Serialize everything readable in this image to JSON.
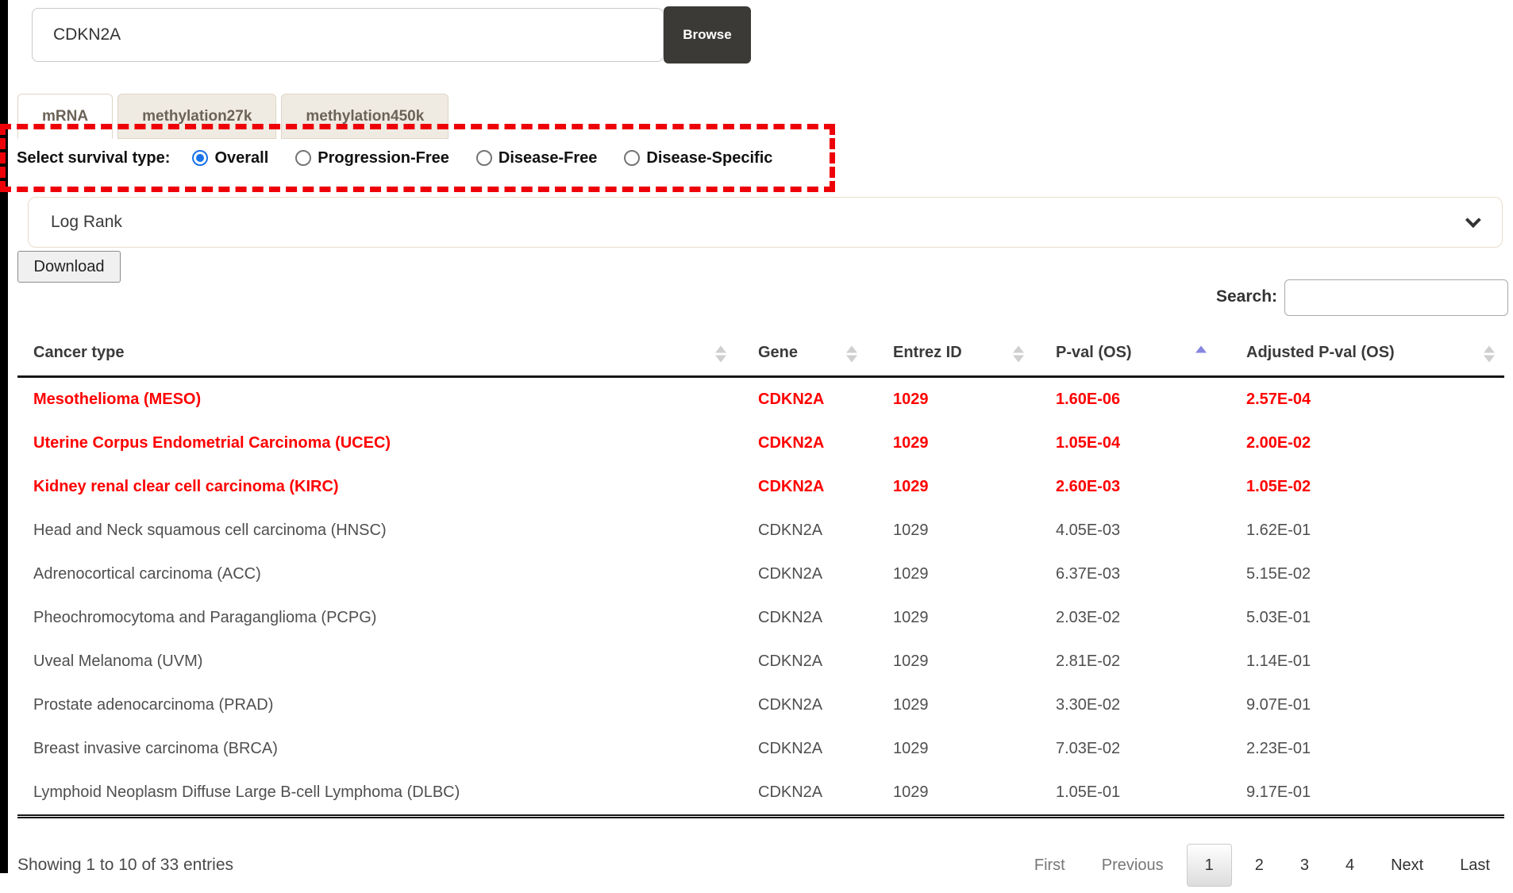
{
  "gene_search": {
    "value": "CDKN2A",
    "browse_label": "Browse"
  },
  "tabs": [
    {
      "label": "mRNA",
      "active": true
    },
    {
      "label": "methylation27k",
      "active": false
    },
    {
      "label": "methylation450k",
      "active": false
    }
  ],
  "survival": {
    "label": "Select survival type:",
    "options": [
      {
        "label": "Overall",
        "selected": true
      },
      {
        "label": "Progression-Free",
        "selected": false
      },
      {
        "label": "Disease-Free",
        "selected": false
      },
      {
        "label": "Disease-Specific",
        "selected": false
      }
    ]
  },
  "test_select": {
    "value": "Log Rank"
  },
  "download_label": "Download",
  "table_search": {
    "label": "Search:",
    "value": ""
  },
  "table": {
    "columns": [
      "Cancer type",
      "Gene",
      "Entrez ID",
      "P-val (OS)",
      "Adjusted P-val (OS)"
    ],
    "sorted_column_index": 3,
    "sort_direction": "asc",
    "rows": [
      {
        "cancer_type": "Mesothelioma (MESO)",
        "gene": "CDKN2A",
        "entrez_id": "1029",
        "p_val": "1.60E-06",
        "adj_p_val": "2.57E-04",
        "significant": true
      },
      {
        "cancer_type": "Uterine Corpus Endometrial Carcinoma (UCEC)",
        "gene": "CDKN2A",
        "entrez_id": "1029",
        "p_val": "1.05E-04",
        "adj_p_val": "2.00E-02",
        "significant": true
      },
      {
        "cancer_type": "Kidney renal clear cell carcinoma (KIRC)",
        "gene": "CDKN2A",
        "entrez_id": "1029",
        "p_val": "2.60E-03",
        "adj_p_val": "1.05E-02",
        "significant": true
      },
      {
        "cancer_type": "Head and Neck squamous cell carcinoma (HNSC)",
        "gene": "CDKN2A",
        "entrez_id": "1029",
        "p_val": "4.05E-03",
        "adj_p_val": "1.62E-01",
        "significant": false
      },
      {
        "cancer_type": "Adrenocortical carcinoma (ACC)",
        "gene": "CDKN2A",
        "entrez_id": "1029",
        "p_val": "6.37E-03",
        "adj_p_val": "5.15E-02",
        "significant": false
      },
      {
        "cancer_type": "Pheochromocytoma and Paraganglioma (PCPG)",
        "gene": "CDKN2A",
        "entrez_id": "1029",
        "p_val": "2.03E-02",
        "adj_p_val": "5.03E-01",
        "significant": false
      },
      {
        "cancer_type": "Uveal Melanoma (UVM)",
        "gene": "CDKN2A",
        "entrez_id": "1029",
        "p_val": "2.81E-02",
        "adj_p_val": "1.14E-01",
        "significant": false
      },
      {
        "cancer_type": "Prostate adenocarcinoma (PRAD)",
        "gene": "CDKN2A",
        "entrez_id": "1029",
        "p_val": "3.30E-02",
        "adj_p_val": "9.07E-01",
        "significant": false
      },
      {
        "cancer_type": "Breast invasive carcinoma (BRCA)",
        "gene": "CDKN2A",
        "entrez_id": "1029",
        "p_val": "7.03E-02",
        "adj_p_val": "2.23E-01",
        "significant": false
      },
      {
        "cancer_type": "Lymphoid Neoplasm Diffuse Large B-cell Lymphoma (DLBC)",
        "gene": "CDKN2A",
        "entrez_id": "1029",
        "p_val": "1.05E-01",
        "adj_p_val": "9.17E-01",
        "significant": false
      }
    ]
  },
  "footer": {
    "info": "Showing 1 to 10 of 33 entries",
    "pagination": [
      {
        "label": "First",
        "type": "disabled"
      },
      {
        "label": "Previous",
        "type": "disabled"
      },
      {
        "label": "1",
        "type": "current"
      },
      {
        "label": "2",
        "type": "page"
      },
      {
        "label": "3",
        "type": "page"
      },
      {
        "label": "4",
        "type": "page"
      },
      {
        "label": "Next",
        "type": "nav"
      },
      {
        "label": "Last",
        "type": "nav"
      }
    ]
  },
  "colors": {
    "significant_row": "#ff0000",
    "highlight_dashed_border": "#ee0008",
    "sort_active_arrow": "#8686e0",
    "radio_selected": "#1a73e8",
    "browse_button_bg": "#3b3a37",
    "inactive_tab_bg": "#f0ebe2"
  }
}
